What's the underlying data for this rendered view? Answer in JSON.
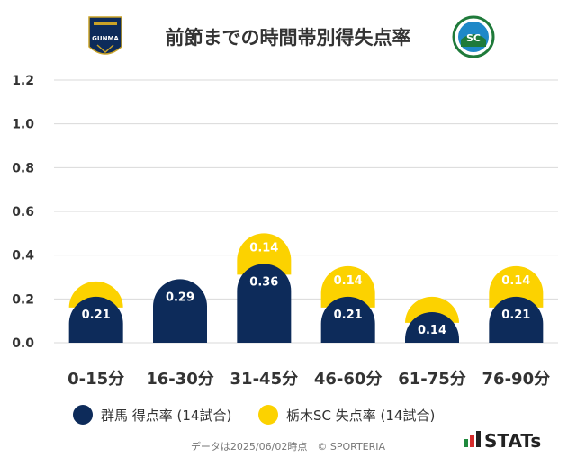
{
  "header": {
    "title": "前節までの時間帯別得失点率",
    "home_logo_text": "GUNMA",
    "away_logo_text": "SC"
  },
  "chart_data": {
    "type": "bar",
    "stacked": true,
    "categories": [
      "0-15分",
      "16-30分",
      "31-45分",
      "46-60分",
      "61-75分",
      "76-90分"
    ],
    "series": [
      {
        "name": "群馬 得点率 (14試合)",
        "color": "#0d2b5a",
        "values": [
          0.21,
          0.29,
          0.36,
          0.21,
          0.14,
          0.21
        ]
      },
      {
        "name": "栃木SC 失点率 (14試合)",
        "color": "#fcd200",
        "values": [
          0.07,
          0.0,
          0.14,
          0.14,
          0.07,
          0.14
        ]
      }
    ],
    "data_labels": {
      "series_0": [
        "0.21",
        "0.29",
        "0.36",
        "0.21",
        "0.14",
        "0.21"
      ],
      "series_1": [
        "",
        "",
        "0.14",
        "0.14",
        "",
        "0.14"
      ]
    },
    "ylim": [
      0,
      1.2
    ],
    "yticks": [
      "0.0",
      "0.2",
      "0.4",
      "0.6",
      "0.8",
      "1.0",
      "1.2"
    ],
    "grid": true,
    "legend_position": "bottom"
  },
  "footer": {
    "source": "データは2025/06/02時点　© SPORTERIA",
    "brand": "STATs"
  },
  "colors": {
    "navy": "#0d2b5a",
    "yellow": "#fcd200",
    "grid": "#d9d9d9",
    "text": "#333333",
    "brand_green": "#1f8a3d",
    "brand_red": "#d62b2b"
  }
}
